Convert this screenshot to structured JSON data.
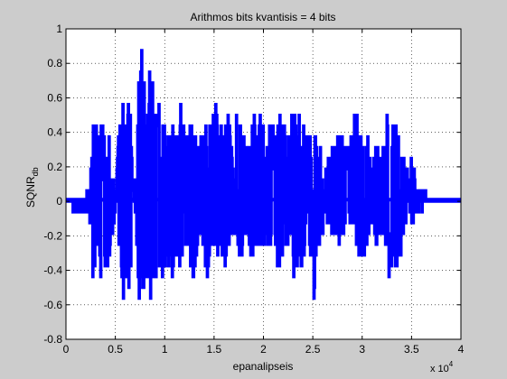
{
  "chart_data": {
    "type": "line",
    "title": "Arithmos bits kvantisis = 4 bits",
    "xlabel": "epanalipseis",
    "ylabel_main": "SQNR",
    "ylabel_sub": "db",
    "x_exponent_base": "x 10",
    "x_exponent_power": "4",
    "xlim": [
      0,
      40000
    ],
    "ylim": [
      -0.8,
      1
    ],
    "x_ticks": [
      0,
      5000,
      10000,
      15000,
      20000,
      25000,
      30000,
      35000,
      40000
    ],
    "x_tick_labels": [
      "0",
      "0.5",
      "1",
      "1.5",
      "2",
      "2.5",
      "3",
      "3.5",
      "4"
    ],
    "y_ticks": [
      -0.8,
      -0.6,
      -0.4,
      -0.2,
      0,
      0.2,
      0.4,
      0.6,
      0.8,
      1
    ],
    "y_tick_labels": [
      "-0.8",
      "-0.6",
      "-0.4",
      "-0.2",
      "0",
      "0.2",
      "0.4",
      "0.6",
      "0.8",
      "1"
    ],
    "grid": true,
    "line_color": "#0000ff",
    "background_color": "#cccccc",
    "axes_color": "#ffffff",
    "envelope": {
      "x": [
        0,
        2000,
        2400,
        2700,
        2900,
        3300,
        3500,
        3800,
        4100,
        4400,
        4700,
        5000,
        5400,
        5800,
        6100,
        6400,
        6700,
        7000,
        7400,
        7800,
        8100,
        8500,
        9000,
        9300,
        9600,
        9900,
        10300,
        10700,
        11200,
        11600,
        12100,
        12500,
        12900,
        13400,
        13800,
        14300,
        14700,
        15200,
        15600,
        16100,
        16500,
        16900,
        17300,
        17700,
        18200,
        18600,
        19000,
        19400,
        19800,
        20200,
        20600,
        21000,
        21500,
        22000,
        22500,
        22900,
        23300,
        23600,
        23900,
        24200,
        24500,
        24800,
        25100,
        25500,
        25800,
        26200,
        26600,
        27000,
        27400,
        27800,
        28200,
        28600,
        29000,
        29400,
        29800,
        30200,
        30600,
        31000,
        31400,
        31800,
        32200,
        32600,
        33000,
        33400,
        33800,
        34200,
        34600,
        35000,
        35500,
        36000,
        36600,
        37200,
        37800,
        38500,
        39200,
        40000
      ],
      "upper": [
        0.03,
        0.03,
        0.08,
        0.42,
        0.55,
        0.35,
        0.46,
        0.42,
        0.25,
        0.46,
        0.2,
        0.05,
        0.47,
        0.6,
        0.44,
        0.68,
        0.2,
        0.06,
        0.9,
        0.9,
        0.52,
        0.78,
        0.56,
        0.6,
        0.54,
        0.46,
        0.35,
        0.46,
        0.36,
        0.54,
        0.42,
        0.45,
        0.42,
        0.36,
        0.43,
        0.44,
        0.46,
        0.58,
        0.4,
        0.56,
        0.46,
        0.3,
        0.53,
        0.48,
        0.38,
        0.3,
        0.51,
        0.45,
        0.57,
        0.2,
        0.48,
        0.43,
        0.5,
        0.45,
        0.4,
        0.53,
        0.56,
        0.62,
        0.44,
        0.46,
        0.4,
        0.37,
        0.58,
        0.3,
        0.38,
        0.14,
        0.32,
        0.36,
        0.33,
        0.45,
        0.33,
        0.3,
        0.46,
        0.54,
        0.42,
        0.45,
        0.35,
        0.2,
        0.36,
        0.3,
        0.33,
        0.55,
        0.42,
        0.46,
        0.33,
        0.3,
        0.17,
        0.28,
        0.1,
        0.04,
        0.03,
        0.03,
        0.03,
        0.03,
        0.03,
        0.03
      ],
      "lower": [
        -0.03,
        -0.05,
        -0.1,
        -0.42,
        -0.38,
        -0.3,
        -0.44,
        -0.37,
        -0.42,
        -0.3,
        -0.2,
        -0.05,
        -0.34,
        -0.62,
        -0.43,
        -0.56,
        -0.2,
        -0.06,
        -0.6,
        -0.62,
        -0.44,
        -0.58,
        -0.42,
        -0.4,
        -0.44,
        -0.42,
        -0.38,
        -0.46,
        -0.3,
        -0.52,
        -0.25,
        -0.33,
        -0.5,
        -0.25,
        -0.3,
        -0.44,
        -0.25,
        -0.34,
        -0.28,
        -0.36,
        -0.26,
        -0.18,
        -0.3,
        -0.35,
        -0.2,
        -0.3,
        -0.32,
        -0.25,
        -0.36,
        -0.2,
        -0.28,
        -0.23,
        -0.39,
        -0.34,
        -0.24,
        -0.4,
        -0.45,
        -0.44,
        -0.42,
        -0.32,
        -0.26,
        -0.32,
        -0.58,
        -0.27,
        -0.25,
        -0.09,
        -0.12,
        -0.2,
        -0.25,
        -0.28,
        -0.18,
        -0.15,
        -0.12,
        -0.3,
        -0.36,
        -0.3,
        -0.22,
        -0.1,
        -0.25,
        -0.21,
        -0.2,
        -0.42,
        -0.46,
        -0.4,
        -0.34,
        -0.21,
        -0.05,
        -0.12,
        -0.05,
        -0.04,
        -0.03,
        -0.03,
        -0.03,
        -0.03,
        -0.03,
        -0.03
      ]
    }
  }
}
